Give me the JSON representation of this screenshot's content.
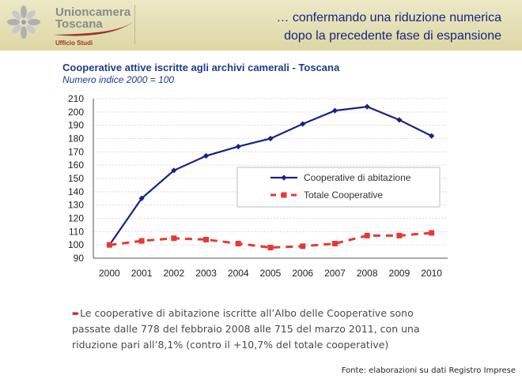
{
  "header": {
    "logo_line1": "Unioncamera",
    "logo_line2": "Toscana",
    "logo_sub": "Ufficio Studi",
    "title_line1": "… confermando una riduzione numerica",
    "title_line2": "dopo la precedente fase di espansione"
  },
  "chart_data": {
    "type": "line",
    "title": "Cooperative attive iscritte agli archivi camerali - Toscana",
    "subtitle": "Numero indice 2000 = 100",
    "categories": [
      "2000",
      "2001",
      "2002",
      "2003",
      "2004",
      "2005",
      "2006",
      "2007",
      "2008",
      "2009",
      "2010"
    ],
    "ylim": [
      90,
      210
    ],
    "yticks": [
      "90",
      "100",
      "110",
      "120",
      "130",
      "140",
      "150",
      "160",
      "170",
      "180",
      "190",
      "200",
      "210"
    ],
    "xlabel": "",
    "ylabel": "",
    "grid": "horizontal",
    "legend_position": "center-right",
    "series": [
      {
        "name": "Cooperative di abitazione",
        "color": "#1a237e",
        "style": "solid-diamond",
        "values": [
          100,
          135,
          156,
          167,
          174,
          180,
          191,
          201,
          204,
          194,
          182
        ]
      },
      {
        "name": "Totale Cooperative",
        "color": "#e53935",
        "style": "dashed-square",
        "values": [
          100,
          103,
          105,
          104,
          101,
          98,
          99,
          101,
          107,
          107,
          109
        ]
      }
    ]
  },
  "note": {
    "text": "Le cooperative di abitazione iscritte all’Albo delle Cooperative sono passate dalle 778 del febbraio 2008 alle 715 del marzo 2011, con una riduzione pari all’8,1% (contro il +10,7% del totale cooperative)"
  },
  "source": "Fonte: elaborazioni su dati Registro Imprese"
}
